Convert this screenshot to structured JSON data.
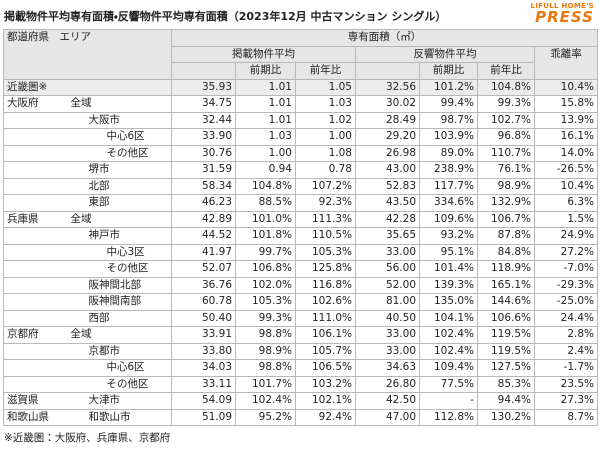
{
  "header": {
    "title": "掲載物件平均専有面積・反響物件平均専有面積（2023年12月 中古マンション シングル）",
    "logo_top": "LIFULL HOME'S",
    "logo_bottom": "PRESS"
  },
  "table": {
    "header": {
      "area": "都道府県　エリア",
      "group": "専有面積（㎡）",
      "listed": "掲載物件平均",
      "response": "反響物件平均",
      "gap": "乖離率",
      "sub": [
        "前期比",
        "前年比",
        "前期比",
        "前年比"
      ]
    },
    "rows": [
      [
        "近畿圏※",
        null,
        "35.93",
        "1.01",
        "1.05",
        "32.56",
        "101.2%",
        "104.8%",
        "10.4%"
      ],
      [
        "大阪府",
        "全域",
        "34.75",
        "1.01",
        "1.03",
        "30.02",
        "99.4%",
        "99.3%",
        "15.8%"
      ],
      [
        null,
        "大阪市",
        "32.44",
        "1.01",
        "1.02",
        "28.49",
        "98.7%",
        "102.7%",
        "13.9%"
      ],
      [
        null,
        "中心6区",
        "33.90",
        "1.03",
        "1.00",
        "29.20",
        "103.9%",
        "96.8%",
        "16.1%"
      ],
      [
        null,
        "その他区",
        "30.76",
        "1.00",
        "1.08",
        "26.98",
        "89.0%",
        "110.7%",
        "14.0%"
      ],
      [
        null,
        "堺市",
        "31.59",
        "0.94",
        "0.78",
        "43.00",
        "238.9%",
        "76.1%",
        "-26.5%"
      ],
      [
        null,
        "北部",
        "58.34",
        "104.8%",
        "107.2%",
        "52.83",
        "117.7%",
        "98.9%",
        "10.4%"
      ],
      [
        null,
        "東部",
        "46.23",
        "88.5%",
        "92.3%",
        "43.50",
        "334.6%",
        "132.9%",
        "6.3%"
      ],
      [
        "兵庫県",
        "全域",
        "42.89",
        "101.0%",
        "111.3%",
        "42.28",
        "109.6%",
        "106.7%",
        "1.5%"
      ],
      [
        null,
        "神戸市",
        "44.52",
        "101.8%",
        "110.5%",
        "35.65",
        "93.2%",
        "87.8%",
        "24.9%"
      ],
      [
        null,
        "中心3区",
        "41.97",
        "99.7%",
        "105.3%",
        "33.00",
        "95.1%",
        "84.8%",
        "27.2%"
      ],
      [
        null,
        "その他区",
        "52.07",
        "106.8%",
        "125.8%",
        "56.00",
        "101.4%",
        "118.9%",
        "-7.0%"
      ],
      [
        null,
        "阪神間北部",
        "36.76",
        "102.0%",
        "116.8%",
        "52.00",
        "139.3%",
        "165.1%",
        "-29.3%"
      ],
      [
        null,
        "阪神間南部",
        "60.78",
        "105.3%",
        "102.6%",
        "81.00",
        "135.0%",
        "144.6%",
        "-25.0%"
      ],
      [
        null,
        "西部",
        "50.40",
        "99.3%",
        "111.0%",
        "40.50",
        "104.1%",
        "106.6%",
        "24.4%"
      ],
      [
        "京都府",
        "全域",
        "33.91",
        "98.8%",
        "106.1%",
        "33.00",
        "102.4%",
        "119.5%",
        "2.8%"
      ],
      [
        null,
        "京都市",
        "33.80",
        "98.9%",
        "105.7%",
        "33.00",
        "102.4%",
        "119.5%",
        "2.4%"
      ],
      [
        null,
        "中心6区",
        "34.03",
        "98.8%",
        "106.5%",
        "34.63",
        "109.4%",
        "127.5%",
        "-1.7%"
      ],
      [
        null,
        "その他区",
        "33.11",
        "101.7%",
        "103.2%",
        "26.80",
        "77.5%",
        "85.3%",
        "23.5%"
      ],
      [
        "滋賀県",
        "大津市",
        "54.09",
        "102.4%",
        "102.1%",
        "42.50",
        "-",
        "94.4%",
        "27.3%"
      ],
      [
        "和歌山県",
        "和歌山市",
        "51.09",
        "95.2%",
        "92.4%",
        "47.00",
        "112.8%",
        "130.2%",
        "8.7%"
      ]
    ]
  },
  "footnote": "※近畿圏：大阪府、兵庫県、京都府"
}
